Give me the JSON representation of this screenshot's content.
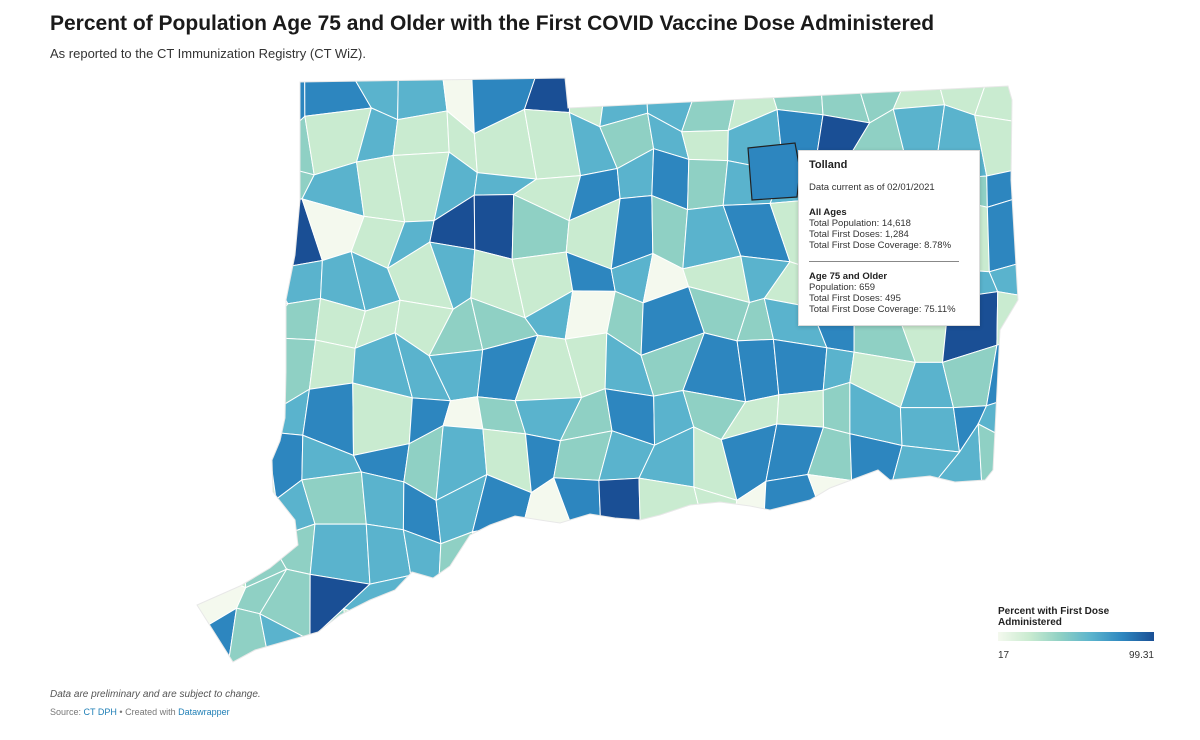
{
  "header": {
    "title": "Percent of Population Age 75 and Older with the First COVID Vaccine Dose Administered",
    "subtitle": "As reported to the CT Immunization Registry (CT WiZ)."
  },
  "tooltip": {
    "town": "Tolland",
    "as_of": "Data current as of 02/01/2021",
    "all_ages": {
      "heading": "All Ages",
      "population": "Total Population: 14,618",
      "first_doses": "Total First Doses: 1,284",
      "coverage": "Total First Dose Coverage: 8.78%"
    },
    "age75": {
      "heading": "Age 75 and Older",
      "population": "Population: 659",
      "first_doses": "Total First Doses: 495",
      "coverage": "Total First Dose Coverage: 75.11%"
    }
  },
  "legend": {
    "title": "Percent with First Dose Administered",
    "min": "17",
    "max": "99.31"
  },
  "footer": {
    "notes": "Data are preliminary and are subject to change.",
    "source_label": "Source:",
    "source_link": "CT DPH",
    "separator": "•",
    "created_label": "Created with",
    "created_link": "Datawrapper"
  },
  "colors": {
    "scale": [
      "#f4f9ee",
      "#c9ebd0",
      "#8fd0c4",
      "#5ab3cd",
      "#2d86bf",
      "#1a4f95"
    ],
    "state_border": "#ffffff",
    "highlight_stroke": "#222222"
  }
}
